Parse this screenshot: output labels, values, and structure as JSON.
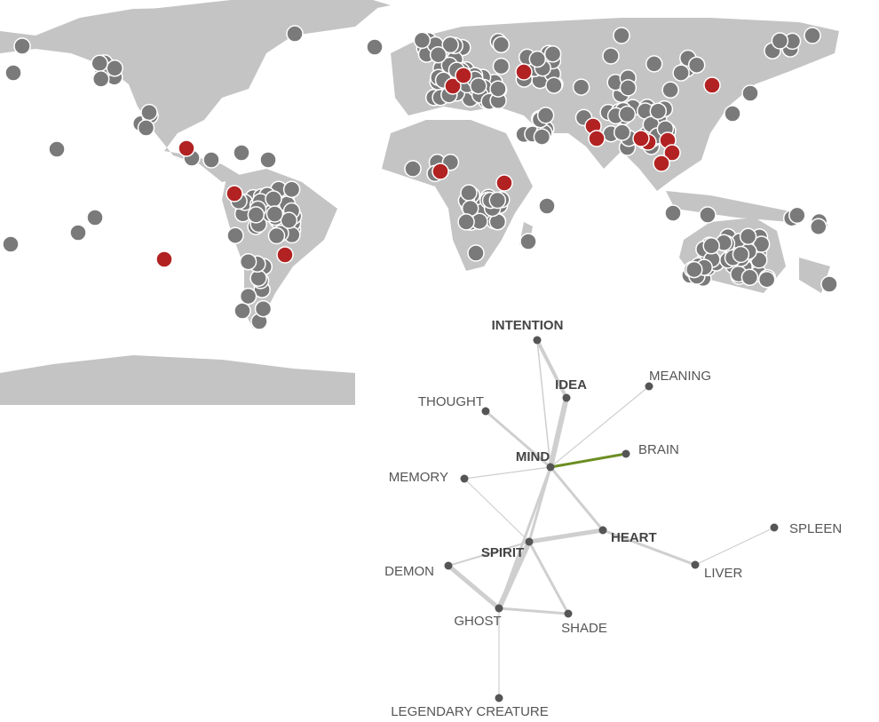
{
  "network": {
    "nodes": [
      {
        "label": "INTENTION",
        "bold": true
      },
      {
        "label": "IDEA",
        "bold": true
      },
      {
        "label": "MEANING",
        "bold": false
      },
      {
        "label": "THOUGHT",
        "bold": false
      },
      {
        "label": "MIND",
        "bold": true
      },
      {
        "label": "BRAIN",
        "bold": false
      },
      {
        "label": "MEMORY",
        "bold": false
      },
      {
        "label": "HEART",
        "bold": true
      },
      {
        "label": "SPLEEN",
        "bold": false
      },
      {
        "label": "SPIRIT",
        "bold": true
      },
      {
        "label": "DEMON",
        "bold": false
      },
      {
        "label": "LIVER",
        "bold": false
      },
      {
        "label": "GHOST",
        "bold": false
      },
      {
        "label": "SHADE",
        "bold": false
      },
      {
        "label": "LEGENDARY CREATURE",
        "bold": false
      }
    ]
  }
}
